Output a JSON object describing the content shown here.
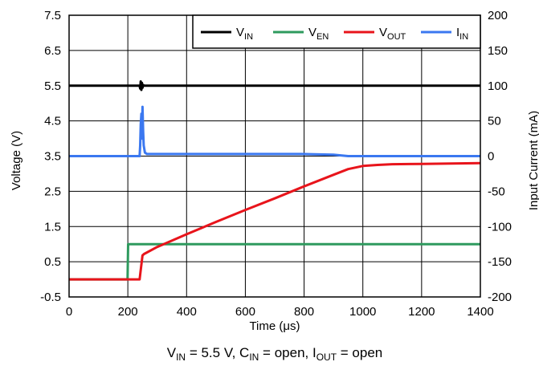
{
  "chart_data": {
    "type": "line",
    "xlabel": "Time (μs)",
    "ylabel_left": "Voltage (V)",
    "ylabel_right": "Input Current (mA)",
    "xlim": [
      0,
      1400
    ],
    "ylim_left": [
      -0.5,
      7.5
    ],
    "ylim_right": [
      -200,
      200
    ],
    "x_ticks": [
      "0",
      "200",
      "400",
      "600",
      "800",
      "1000",
      "1200",
      "1400"
    ],
    "y_left_ticks": [
      "-0.5",
      "0.5",
      "1.5",
      "2.5",
      "3.5",
      "4.5",
      "5.5",
      "6.5",
      "7.5"
    ],
    "y_right_ticks": [
      "-200",
      "-150",
      "-100",
      "-50",
      "0",
      "50",
      "100",
      "150",
      "200"
    ],
    "grid": true,
    "legend_position": "top-right",
    "caption": {
      "parts": [
        {
          "t": "V",
          "sub": "IN"
        },
        {
          "t": " = 5.5 V, C"
        },
        {
          "sub": "IN"
        },
        {
          "t": " = open, I"
        },
        {
          "sub": "OUT"
        },
        {
          "t": " = open"
        }
      ]
    },
    "series": [
      {
        "name": "VIN",
        "label_main": "V",
        "label_sub": "IN",
        "color": "#000000",
        "axis": "left",
        "x": [
          0,
          240,
          242,
          244,
          246,
          248,
          250,
          252,
          256,
          400,
          800,
          1400
        ],
        "y": [
          5.5,
          5.5,
          5.42,
          5.62,
          5.38,
          5.58,
          5.44,
          5.52,
          5.5,
          5.5,
          5.5,
          5.5
        ]
      },
      {
        "name": "VEN",
        "label_main": "V",
        "label_sub": "EN",
        "color": "#2e9a5e",
        "axis": "left",
        "x": [
          0,
          199,
          201,
          400,
          800,
          1400
        ],
        "y": [
          0.0,
          0.0,
          1.0,
          1.0,
          1.0,
          1.0
        ]
      },
      {
        "name": "VOUT",
        "label_main": "V",
        "label_sub": "OUT",
        "color": "#e8141b",
        "axis": "left",
        "x": [
          0,
          240,
          250,
          255,
          300,
          400,
          500,
          600,
          700,
          800,
          900,
          950,
          1000,
          1050,
          1100,
          1200,
          1300,
          1400
        ],
        "y": [
          0.0,
          0.0,
          0.68,
          0.72,
          0.92,
          1.28,
          1.63,
          1.97,
          2.3,
          2.64,
          2.97,
          3.13,
          3.22,
          3.25,
          3.27,
          3.28,
          3.29,
          3.3
        ]
      },
      {
        "name": "IIN",
        "label_main": "I",
        "label_sub": "IN",
        "color": "#3b78f0",
        "axis": "right",
        "x": [
          0,
          240,
          242,
          244,
          246,
          248,
          250,
          252,
          254,
          258,
          265,
          280,
          400,
          800,
          900,
          950,
          1000,
          1400
        ],
        "y": [
          0,
          0,
          15,
          45,
          60,
          25,
          70,
          35,
          15,
          5,
          3,
          3,
          3,
          3,
          2,
          0,
          0,
          0
        ]
      }
    ]
  }
}
